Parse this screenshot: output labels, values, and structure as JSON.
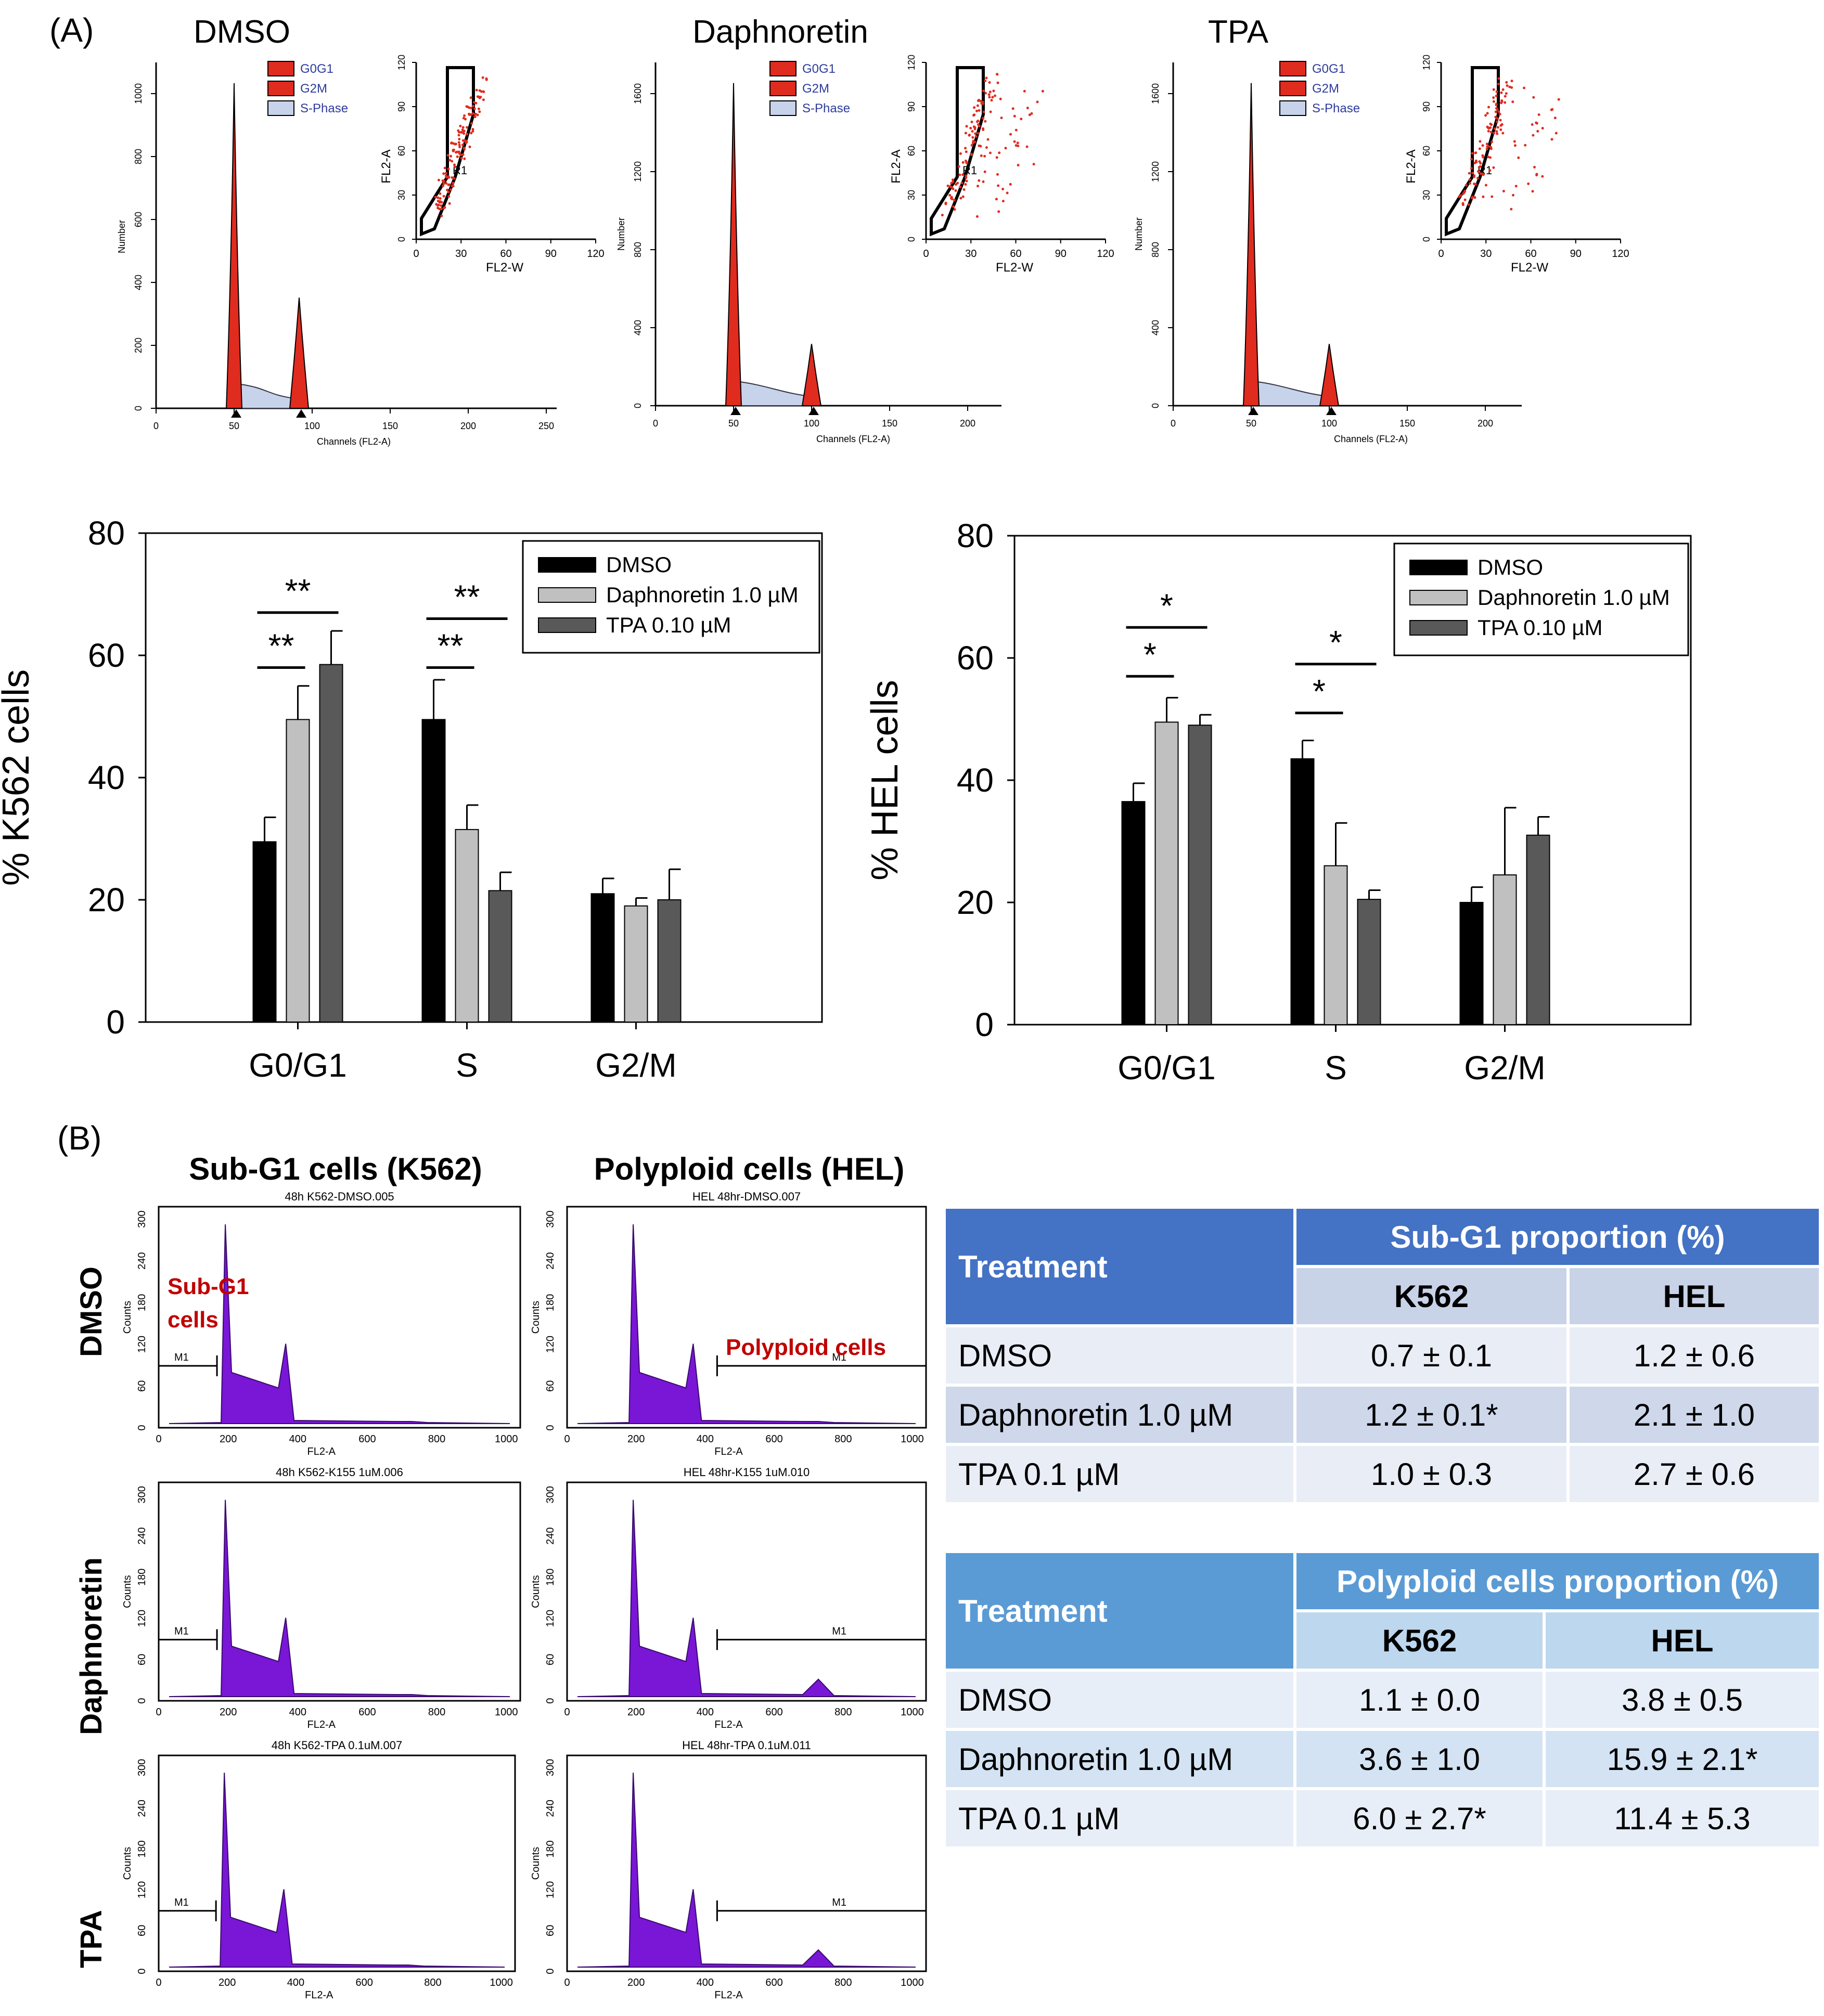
{
  "panel_labels": {
    "a": "(A)",
    "b": "(B)"
  },
  "flow": {
    "panels": [
      {
        "title": "DMSO",
        "histogram": {
          "y_ticks": [
            "0",
            "200",
            "400",
            "600",
            "800",
            "1000"
          ],
          "y_label": "Number",
          "x_ticks": [
            "0",
            "50",
            "100",
            "150",
            "200",
            "250"
          ],
          "x_label": "Channels (FL2-A)"
        },
        "inset": {
          "y_ticks": [
            "0",
            "30",
            "60",
            "90",
            "120"
          ],
          "x_ticks": [
            "0",
            "30",
            "60",
            "90",
            "120"
          ],
          "x_label": "FL2-W",
          "y_label": "FL2-A",
          "gate": "R1"
        }
      },
      {
        "title": "Daphnoretin",
        "histogram": {
          "y_ticks": [
            "0",
            "400",
            "800",
            "1200",
            "1600"
          ],
          "y_label": "Number",
          "x_ticks": [
            "0",
            "50",
            "100",
            "150",
            "200"
          ],
          "x_label": "Channels (FL2-A)"
        },
        "inset": {
          "y_ticks": [
            "0",
            "30",
            "60",
            "90",
            "120"
          ],
          "x_ticks": [
            "0",
            "30",
            "60",
            "90",
            "120"
          ],
          "x_label": "FL2-W",
          "y_label": "FL2-A",
          "gate": "R1"
        }
      },
      {
        "title": "TPA",
        "histogram": {
          "y_ticks": [
            "0",
            "400",
            "800",
            "1200",
            "1600"
          ],
          "y_label": "Number",
          "x_ticks": [
            "0",
            "50",
            "100",
            "150",
            "200"
          ],
          "x_label": "Channels (FL2-A)"
        },
        "inset": {
          "y_ticks": [
            "0",
            "30",
            "60",
            "90",
            "120"
          ],
          "x_ticks": [
            "0",
            "30",
            "60",
            "90",
            "120"
          ],
          "x_label": "FL2-W",
          "y_label": "FL2-A",
          "gate": "R1"
        }
      }
    ],
    "legend": [
      "G0G1",
      "G2M",
      "S-Phase"
    ]
  },
  "chart_data": [
    {
      "type": "bar",
      "ylabel": "% K562 cells",
      "ylim": [
        0,
        80
      ],
      "yticks": [
        "0",
        "20",
        "40",
        "60",
        "80"
      ],
      "categories": [
        "G0/G1",
        "S",
        "G2/M"
      ],
      "series": [
        {
          "name": "DMSO",
          "color": "#000000",
          "values": [
            29.5,
            49.5,
            21
          ],
          "errors": [
            4,
            6.5,
            2.5
          ]
        },
        {
          "name": "Daphnoretin 1.0 µM",
          "color": "#c0c0c0",
          "values": [
            49.5,
            31.5,
            19
          ],
          "errors": [
            5.5,
            4,
            1.3
          ]
        },
        {
          "name": "TPA 0.10 µM",
          "color": "#595959",
          "values": [
            58.5,
            21.5,
            20
          ],
          "errors": [
            5.5,
            3,
            5
          ]
        }
      ],
      "significance": [
        {
          "category": 0,
          "from": 0,
          "to": 1,
          "label": "**",
          "level": 58
        },
        {
          "category": 0,
          "from": 0,
          "to": 2,
          "label": "**",
          "level": 67
        },
        {
          "category": 1,
          "from": 0,
          "to": 1,
          "label": "**",
          "level": 58
        },
        {
          "category": 1,
          "from": 0,
          "to": 2,
          "label": "**",
          "level": 66
        }
      ]
    },
    {
      "type": "bar",
      "ylabel": "% HEL cells",
      "ylim": [
        0,
        80
      ],
      "yticks": [
        "0",
        "20",
        "40",
        "60",
        "80"
      ],
      "categories": [
        "G0/G1",
        "S",
        "G2/M"
      ],
      "series": [
        {
          "name": "DMSO",
          "color": "#000000",
          "values": [
            36.5,
            43.5,
            20
          ],
          "errors": [
            3,
            3,
            2.5
          ]
        },
        {
          "name": "Daphnoretin 1.0 µM",
          "color": "#c0c0c0",
          "values": [
            49.5,
            26,
            24.5
          ],
          "errors": [
            4,
            7,
            11
          ]
        },
        {
          "name": "TPA 0.10 µM",
          "color": "#595959",
          "values": [
            49,
            20.5,
            31
          ],
          "errors": [
            1.7,
            1.5,
            3
          ]
        }
      ],
      "significance": [
        {
          "category": 0,
          "from": 0,
          "to": 1,
          "label": "*",
          "level": 57
        },
        {
          "category": 0,
          "from": 0,
          "to": 2,
          "label": "*",
          "level": 65
        },
        {
          "category": 1,
          "from": 0,
          "to": 1,
          "label": "*",
          "level": 51
        },
        {
          "category": 1,
          "from": 0,
          "to": 2,
          "label": "*",
          "level": 59
        }
      ]
    }
  ],
  "partB": {
    "col_titles": [
      "Sub-G1 cells (K562)",
      "Polyploid cells (HEL)"
    ],
    "row_labels": [
      "DMSO",
      "Daphnoretin",
      "TPA"
    ],
    "file_titles": [
      [
        "48h K562-DMSO.005",
        "HEL 48hr-DMSO.007"
      ],
      [
        "48h K562-K155 1uM.006",
        "HEL 48hr-K155 1uM.010"
      ],
      [
        "48h K562-TPA 0.1uM.007",
        "HEL 48hr-TPA 0.1uM.011"
      ]
    ],
    "y_ticks": [
      "0",
      "60",
      "120",
      "180",
      "240",
      "300"
    ],
    "x_ticks": [
      "0",
      "200",
      "400",
      "600",
      "800",
      "1000"
    ],
    "x_label": "FL2-A",
    "y_label": "Counts",
    "marker": "M1",
    "annot_subg1": [
      "Sub-G1",
      "cells"
    ],
    "annot_poly": "Polyploid cells"
  },
  "tables": [
    {
      "header": "Treatment",
      "title": "Sub-G1 proportion (%)",
      "cols": [
        "K562",
        "HEL"
      ],
      "rows": [
        [
          "DMSO",
          "0.7 ± 0.1",
          "1.2 ± 0.6"
        ],
        [
          "Daphnoretin 1.0 µM",
          "1.2 ± 0.1*",
          "2.1 ± 1.0"
        ],
        [
          "TPA 0.1 µM",
          "1.0 ± 0.3",
          "2.7 ± 0.6"
        ]
      ]
    },
    {
      "header": "Treatment",
      "title": "Polyploid cells proportion (%)",
      "cols": [
        "K562",
        "HEL"
      ],
      "rows": [
        [
          "DMSO",
          "1.1 ± 0.0",
          "3.8 ± 0.5"
        ],
        [
          "Daphnoretin 1.0 µM",
          "3.6 ± 1.0",
          "15.9 ± 2.1*"
        ],
        [
          "TPA 0.1 µM",
          "6.0 ± 2.7*",
          "11.4 ± 5.3"
        ]
      ]
    }
  ]
}
